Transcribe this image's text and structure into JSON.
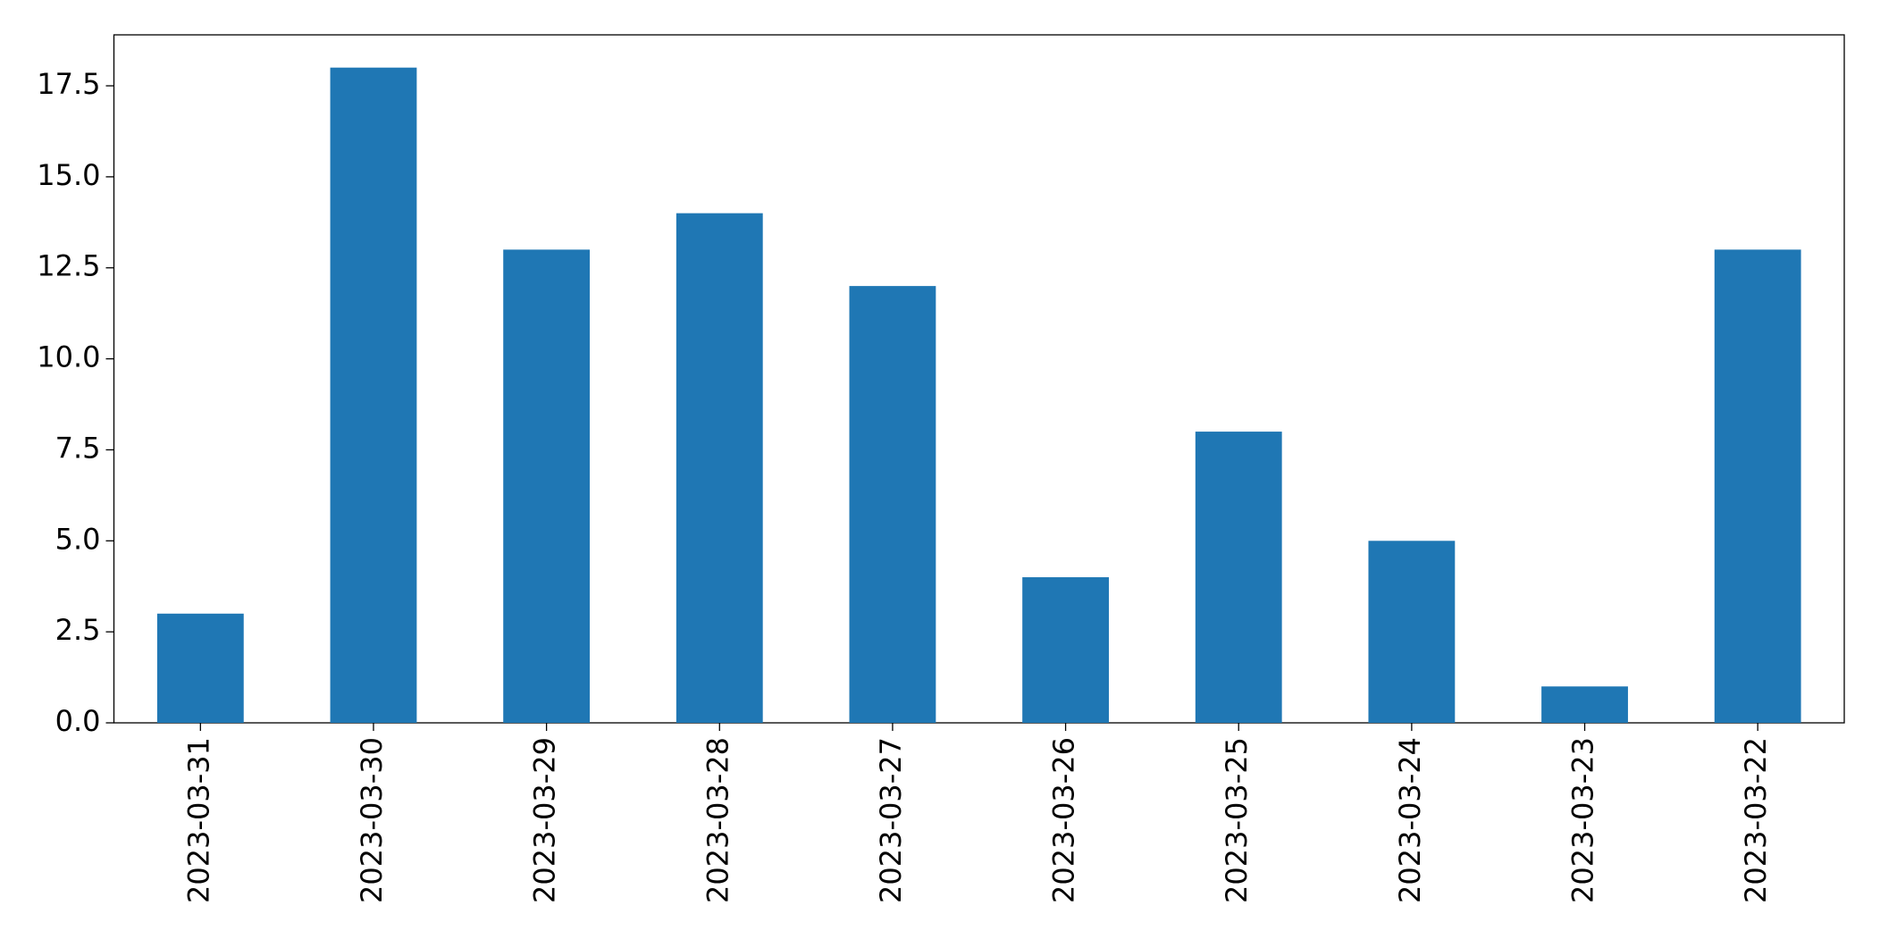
{
  "chart_data": {
    "type": "bar",
    "categories": [
      "2023-03-31",
      "2023-03-30",
      "2023-03-29",
      "2023-03-28",
      "2023-03-27",
      "2023-03-26",
      "2023-03-25",
      "2023-03-24",
      "2023-03-23",
      "2023-03-22"
    ],
    "values": [
      3,
      18,
      13,
      14,
      12,
      4,
      8,
      5,
      1,
      13
    ],
    "color": "#1f77b4",
    "ylim": [
      0,
      18.9
    ],
    "yticks": [
      {
        "value": 0,
        "label": "0.0"
      },
      2.5,
      {
        "value": 5,
        "label": "5.0"
      },
      7.5,
      {
        "value": 10,
        "label": "10.0"
      },
      12.5,
      {
        "value": 15,
        "label": "15.0"
      },
      17.5
    ],
    "grid": false
  }
}
